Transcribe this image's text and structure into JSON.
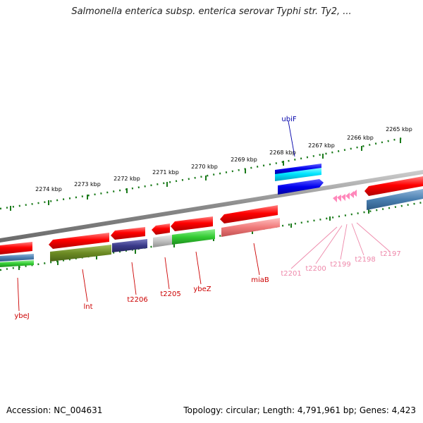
{
  "title": "Salmonella enterica subsp. enterica serovar Typhi str. Ty2, ...",
  "footer": {
    "accession": "Accession: NC_004631",
    "topology": "Topology: circular; Length: 4,791,961 bp; Genes: 4,423"
  },
  "kbp_labels": [
    "2274 kbp",
    "2273 kbp",
    "2272 kbp",
    "2271 kbp",
    "2270 kbp",
    "2269 kbp",
    "2268 kbp",
    "2267 kbp",
    "2266 kbp",
    "2265 kbp"
  ],
  "gene_labels": {
    "ybeJ": "ybeJ",
    "lnt": "lnt",
    "t2206": "t2206",
    "t2205": "t2205",
    "ybeZ": "ybeZ",
    "miaB": "miaB",
    "ubiF": "ubiF",
    "t2201": "t2201",
    "t2200": "t2200",
    "t2199": "t2199",
    "t2198": "t2198",
    "t2197": "t2197"
  },
  "colors": {
    "gene_red": "#ff0000",
    "gene_blue": "#0000ee",
    "gene_cyan": "#00e5ff",
    "gene_steel": "#4a7fb0",
    "gene_olive": "#6b8a23",
    "gene_navy": "#3a3a8a",
    "gene_green": "#33cc33",
    "gene_pink": "#f07a7a",
    "trna_pink": "#ff88bb",
    "tick_green": "#1a7a1a",
    "backbone": "#888888",
    "label_red": "#cc0000",
    "label_blue": "#0000aa",
    "label_pink": "#ee88aa"
  }
}
